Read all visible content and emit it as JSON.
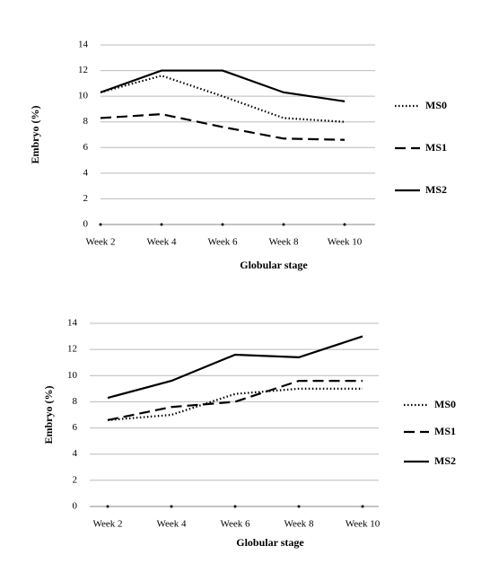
{
  "chart_data": [
    {
      "type": "line",
      "y_label": "Embryo (%)",
      "x_label": "Globular stage",
      "categories": [
        "Week 2",
        "Week 4",
        "Week 6",
        "Week 8",
        "Week 10"
      ],
      "ylim": [
        0,
        14
      ],
      "yticks": [
        0,
        2,
        4,
        6,
        8,
        10,
        12,
        14
      ],
      "grid": true,
      "series": [
        {
          "name": "MS0",
          "color": "#000000",
          "linestyle": "dotted",
          "values": [
            10.3,
            11.6,
            10.0,
            8.3,
            8.0
          ]
        },
        {
          "name": "MS1",
          "color": "#000000",
          "linestyle": "dashed",
          "values": [
            8.3,
            8.6,
            7.6,
            6.7,
            6.6
          ]
        },
        {
          "name": "MS2",
          "color": "#000000",
          "linestyle": "solid",
          "values": [
            10.3,
            12.0,
            12.0,
            10.3,
            9.6
          ]
        }
      ]
    },
    {
      "type": "line",
      "y_label": "Embryo (%)",
      "x_label": "Globular stage",
      "categories": [
        "Week 2",
        "Week 4",
        "Week 6",
        "Week 8",
        "Week 10"
      ],
      "ylim": [
        0,
        14
      ],
      "yticks": [
        0,
        2,
        4,
        6,
        8,
        10,
        12,
        14
      ],
      "grid": true,
      "series": [
        {
          "name": "MS0",
          "color": "#000000",
          "linestyle": "dotted",
          "values": [
            6.6,
            7.0,
            8.6,
            9.0,
            9.0
          ]
        },
        {
          "name": "MS1",
          "color": "#000000",
          "linestyle": "dashed",
          "values": [
            6.6,
            7.6,
            8.0,
            9.6,
            9.6
          ]
        },
        {
          "name": "MS2",
          "color": "#000000",
          "linestyle": "solid",
          "values": [
            8.3,
            9.6,
            11.6,
            11.4,
            13.0
          ]
        }
      ]
    }
  ]
}
